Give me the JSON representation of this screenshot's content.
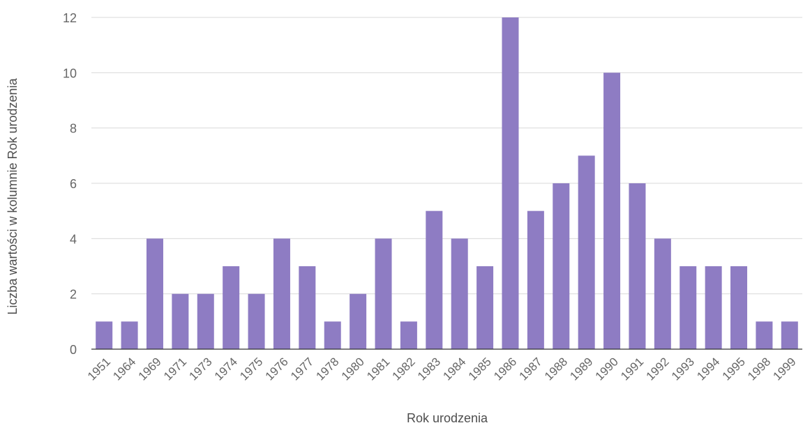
{
  "chart_data": {
    "type": "bar",
    "xlabel": "Rok urodzenia",
    "ylabel": "Liczba wartości w kolumnie Rok urodzenia",
    "categories": [
      "1951",
      "1964",
      "1969",
      "1971",
      "1973",
      "1974",
      "1975",
      "1976",
      "1977",
      "1978",
      "1980",
      "1981",
      "1982",
      "1983",
      "1984",
      "1985",
      "1986",
      "1987",
      "1988",
      "1989",
      "1990",
      "1991",
      "1992",
      "1993",
      "1994",
      "1995",
      "1998",
      "1999"
    ],
    "values": [
      1,
      1,
      4,
      2,
      2,
      3,
      2,
      4,
      3,
      1,
      2,
      4,
      1,
      5,
      4,
      3,
      12,
      5,
      6,
      7,
      10,
      6,
      4,
      3,
      3,
      3,
      1,
      1
    ],
    "ylim": [
      0,
      12
    ],
    "yticks": [
      0,
      2,
      4,
      6,
      8,
      10,
      12
    ],
    "grid": true,
    "legend": "none",
    "colors": {
      "bar": "#8e7cc3",
      "grid": "#d9d9d9",
      "baseline": "#333333",
      "text": "#666666"
    }
  }
}
